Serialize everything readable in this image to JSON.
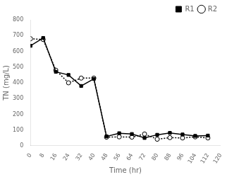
{
  "chart_data": {
    "type": "line",
    "x": [
      0,
      8,
      16,
      24,
      32,
      40,
      48,
      56,
      64,
      72,
      80,
      88,
      96,
      104,
      112
    ],
    "series": [
      {
        "name": "R1",
        "color": "black",
        "line_style": "solid",
        "marker": "square",
        "values": [
          635,
          685,
          470,
          450,
          380,
          425,
          60,
          80,
          75,
          50,
          70,
          82,
          72,
          63,
          65
        ]
      },
      {
        "name": "R2",
        "color": "black",
        "line_style": "dotted",
        "marker": "circle",
        "values": [
          680,
          675,
          480,
          400,
          430,
          430,
          55,
          57,
          55,
          75,
          42,
          52,
          50,
          57,
          50
        ]
      }
    ],
    "xlabel": "Time (hr)",
    "ylabel": "TN (mg/L)",
    "xlim": [
      0,
      120
    ],
    "ylim": [
      0,
      800
    ],
    "xticks": [
      0,
      8,
      16,
      24,
      32,
      40,
      48,
      56,
      64,
      72,
      80,
      88,
      96,
      104,
      112,
      120
    ],
    "yticks": [
      0,
      100,
      200,
      300,
      400,
      500,
      600,
      700,
      800
    ],
    "grid": false,
    "legend": "upper right"
  }
}
